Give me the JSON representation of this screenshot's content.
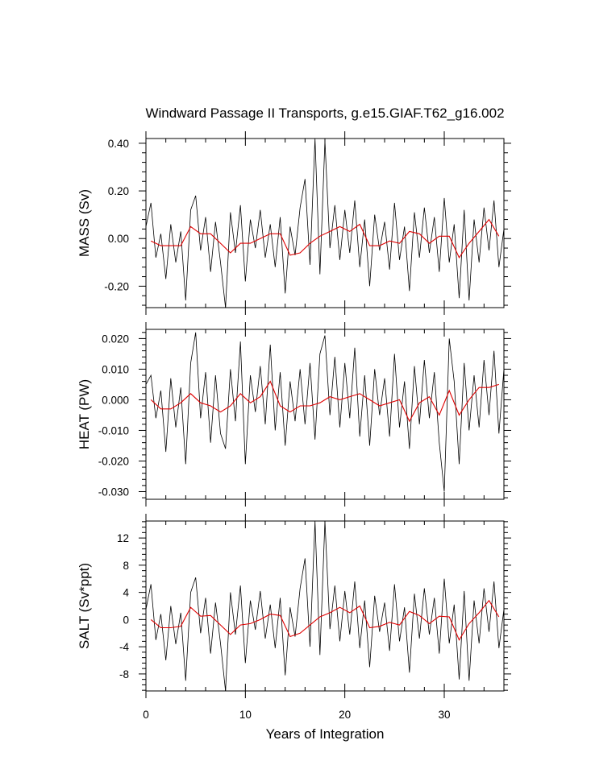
{
  "figure": {
    "title": "Windward Passage II Transports, g.e15.GIAF.T62_g16.002",
    "xlabel": "Years of Integration"
  },
  "colors": {
    "raw_line": "#000000",
    "smooth_line": "#e00000",
    "axes": "#000000"
  },
  "chart_data": [
    {
      "type": "line",
      "ylabel": "MASS (Sv)",
      "xlim": [
        0,
        36
      ],
      "ylim": [
        -0.29,
        0.42
      ],
      "yticks": [
        -0.2,
        0.0,
        0.2,
        0.4
      ],
      "ytick_labels": [
        "-0.20",
        "0.00",
        "0.20",
        "0.40"
      ],
      "xticks": [
        0,
        10,
        20,
        30
      ],
      "xtick_labels": [],
      "series": [
        {
          "role": "monthly",
          "x": [
            0,
            0.5,
            1.0,
            1.5,
            2.0,
            2.5,
            3.0,
            3.5,
            4.0,
            4.5,
            5.0,
            5.5,
            6.0,
            6.5,
            7.0,
            7.5,
            8.0,
            8.5,
            9.0,
            9.5,
            10.0,
            10.5,
            11.0,
            11.5,
            12.0,
            12.5,
            13.0,
            13.5,
            14.0,
            14.5,
            15.0,
            15.5,
            16.0,
            16.5,
            17.0,
            17.5,
            18.0,
            18.5,
            19.0,
            19.5,
            20.0,
            20.5,
            21.0,
            21.5,
            22.0,
            22.5,
            23.0,
            23.5,
            24.0,
            24.5,
            25.0,
            25.5,
            26.0,
            26.5,
            27.0,
            27.5,
            28.0,
            28.5,
            29.0,
            29.5,
            30.0,
            30.5,
            31.0,
            31.5,
            32.0,
            32.5,
            33.0,
            33.5,
            34.0,
            34.5,
            35.0,
            35.5,
            36.0
          ],
          "y": [
            0.05,
            0.15,
            -0.08,
            0.02,
            -0.17,
            0.06,
            -0.1,
            0.03,
            -0.26,
            0.12,
            0.18,
            -0.05,
            0.09,
            -0.14,
            0.07,
            -0.1,
            -0.29,
            0.11,
            -0.06,
            0.14,
            -0.18,
            0.08,
            -0.04,
            0.12,
            -0.08,
            0.06,
            -0.12,
            0.09,
            -0.23,
            0.05,
            -0.07,
            0.13,
            0.25,
            -0.11,
            0.42,
            -0.15,
            0.41,
            -0.04,
            0.14,
            -0.09,
            0.12,
            -0.06,
            0.16,
            -0.12,
            0.08,
            -0.2,
            0.1,
            -0.05,
            0.07,
            -0.13,
            0.15,
            -0.09,
            0.05,
            -0.22,
            0.11,
            -0.08,
            0.13,
            -0.06,
            0.09,
            -0.14,
            0.17,
            -0.1,
            0.06,
            -0.25,
            0.12,
            -0.26,
            0.08,
            -0.1,
            0.13,
            -0.05,
            0.16,
            -0.12,
            0.04
          ]
        },
        {
          "role": "annual",
          "x": [
            0.5,
            1.5,
            2.5,
            3.5,
            4.5,
            5.5,
            6.5,
            7.5,
            8.5,
            9.5,
            10.5,
            11.5,
            12.5,
            13.5,
            14.5,
            15.5,
            16.5,
            17.5,
            18.5,
            19.5,
            20.5,
            21.5,
            22.5,
            23.5,
            24.5,
            25.5,
            26.5,
            27.5,
            28.5,
            29.5,
            30.5,
            31.5,
            32.5,
            33.5,
            34.5,
            35.5
          ],
          "y": [
            -0.01,
            -0.03,
            -0.03,
            -0.03,
            0.05,
            0.02,
            0.02,
            -0.02,
            -0.06,
            -0.02,
            -0.02,
            0.0,
            0.02,
            0.02,
            -0.07,
            -0.06,
            -0.02,
            0.01,
            0.03,
            0.05,
            0.03,
            0.06,
            -0.03,
            -0.03,
            -0.01,
            -0.02,
            0.03,
            0.02,
            -0.02,
            0.01,
            0.01,
            -0.08,
            -0.02,
            0.03,
            0.08,
            0.01
          ]
        }
      ]
    },
    {
      "type": "line",
      "ylabel": "HEAT (PW)",
      "xlim": [
        0,
        36
      ],
      "ylim": [
        -0.0325,
        0.023
      ],
      "yticks": [
        -0.03,
        -0.02,
        -0.01,
        0.0,
        0.01,
        0.02
      ],
      "ytick_labels": [
        "-0.030",
        "-0.020",
        "-0.010",
        "0.000",
        "0.010",
        "0.020"
      ],
      "xticks": [
        0,
        10,
        20,
        30
      ],
      "xtick_labels": [],
      "series": [
        {
          "role": "monthly",
          "x": [
            0,
            0.5,
            1.0,
            1.5,
            2.0,
            2.5,
            3.0,
            3.5,
            4.0,
            4.5,
            5.0,
            5.5,
            6.0,
            6.5,
            7.0,
            7.5,
            8.0,
            8.5,
            9.0,
            9.5,
            10.0,
            10.5,
            11.0,
            11.5,
            12.0,
            12.5,
            13.0,
            13.5,
            14.0,
            14.5,
            15.0,
            15.5,
            16.0,
            16.5,
            17.0,
            17.5,
            18.0,
            18.5,
            19.0,
            19.5,
            20.0,
            20.5,
            21.0,
            21.5,
            22.0,
            22.5,
            23.0,
            23.5,
            24.0,
            24.5,
            25.0,
            25.5,
            26.0,
            26.5,
            27.0,
            27.5,
            28.0,
            28.5,
            29.0,
            29.5,
            30.0,
            30.5,
            31.0,
            31.5,
            32.0,
            32.5,
            33.0,
            33.5,
            34.0,
            34.5,
            35.0,
            35.5,
            36.0
          ],
          "y": [
            0.005,
            0.008,
            -0.006,
            0.003,
            -0.017,
            0.007,
            -0.009,
            0.004,
            -0.021,
            0.012,
            0.022,
            -0.006,
            0.009,
            -0.014,
            0.008,
            -0.011,
            -0.016,
            0.01,
            -0.007,
            0.019,
            -0.021,
            0.008,
            -0.004,
            0.011,
            -0.008,
            0.018,
            -0.01,
            0.009,
            -0.015,
            0.006,
            -0.007,
            0.01,
            -0.008,
            0.012,
            -0.013,
            0.015,
            0.021,
            -0.005,
            0.014,
            -0.009,
            0.012,
            -0.006,
            0.017,
            -0.012,
            0.008,
            -0.015,
            0.01,
            -0.005,
            0.007,
            -0.012,
            0.015,
            -0.009,
            0.006,
            -0.016,
            0.011,
            -0.008,
            0.013,
            -0.006,
            0.009,
            -0.014,
            -0.03,
            0.02,
            0.006,
            -0.021,
            0.012,
            -0.01,
            0.008,
            -0.009,
            0.013,
            -0.005,
            0.016,
            -0.011,
            0.01
          ]
        },
        {
          "role": "annual",
          "x": [
            0.5,
            1.5,
            2.5,
            3.5,
            4.5,
            5.5,
            6.5,
            7.5,
            8.5,
            9.5,
            10.5,
            11.5,
            12.5,
            13.5,
            14.5,
            15.5,
            16.5,
            17.5,
            18.5,
            19.5,
            20.5,
            21.5,
            22.5,
            23.5,
            24.5,
            25.5,
            26.5,
            27.5,
            28.5,
            29.5,
            30.5,
            31.5,
            32.5,
            33.5,
            34.5,
            35.5
          ],
          "y": [
            0.0,
            -0.003,
            -0.003,
            -0.001,
            0.002,
            -0.001,
            -0.002,
            -0.004,
            -0.002,
            0.002,
            -0.001,
            0.001,
            0.006,
            -0.002,
            -0.004,
            -0.002,
            -0.002,
            -0.001,
            0.001,
            0.0,
            0.001,
            0.002,
            0.0,
            -0.002,
            -0.001,
            0.0,
            -0.007,
            -0.001,
            0.001,
            -0.005,
            0.003,
            -0.005,
            0.0,
            0.004,
            0.004,
            0.005
          ]
        }
      ]
    },
    {
      "type": "line",
      "ylabel": "SALT (Sv*ppt)",
      "xlim": [
        0,
        36
      ],
      "ylim": [
        -10.5,
        14.5
      ],
      "yticks": [
        -8,
        -4,
        0,
        4,
        8,
        12
      ],
      "ytick_labels": [
        "-8",
        "-4",
        "0",
        "4",
        "8",
        "12"
      ],
      "xticks": [
        0,
        10,
        20,
        30
      ],
      "xtick_labels": [
        "0",
        "10",
        "20",
        "30"
      ],
      "series": [
        {
          "role": "monthly",
          "x": [
            0,
            0.5,
            1.0,
            1.5,
            2.0,
            2.5,
            3.0,
            3.5,
            4.0,
            4.5,
            5.0,
            5.5,
            6.0,
            6.5,
            7.0,
            7.5,
            8.0,
            8.5,
            9.0,
            9.5,
            10.0,
            10.5,
            11.0,
            11.5,
            12.0,
            12.5,
            13.0,
            13.5,
            14.0,
            14.5,
            15.0,
            15.5,
            16.0,
            16.5,
            17.0,
            17.5,
            18.0,
            18.5,
            19.0,
            19.5,
            20.0,
            20.5,
            21.0,
            21.5,
            22.0,
            22.5,
            23.0,
            23.5,
            24.0,
            24.5,
            25.0,
            25.5,
            26.0,
            26.5,
            27.0,
            27.5,
            28.0,
            28.5,
            29.0,
            29.5,
            30.0,
            30.5,
            31.0,
            31.5,
            32.0,
            32.5,
            33.0,
            33.5,
            34.0,
            34.5,
            35.0,
            35.5,
            36.0
          ],
          "y": [
            1.5,
            5.2,
            -3.0,
            0.8,
            -6.0,
            2.0,
            -3.6,
            1.0,
            -9.0,
            4.0,
            6.2,
            -2.0,
            3.2,
            -5.0,
            2.5,
            -3.5,
            -10.5,
            4.0,
            -2.2,
            5.0,
            -6.4,
            2.8,
            -1.5,
            4.2,
            -2.8,
            2.2,
            -4.2,
            3.2,
            -8.2,
            1.8,
            -2.5,
            4.6,
            9.0,
            -4.0,
            14.5,
            -5.2,
            14.5,
            -1.4,
            5.0,
            -3.2,
            4.2,
            -2.2,
            5.6,
            -4.2,
            2.8,
            -7.0,
            3.5,
            -1.8,
            2.5,
            -4.6,
            5.2,
            -3.2,
            1.8,
            -7.8,
            3.8,
            -2.8,
            4.6,
            -2.2,
            3.2,
            -5.0,
            6.0,
            -3.5,
            2.2,
            -8.8,
            4.2,
            -9.0,
            2.8,
            -3.5,
            4.6,
            -1.8,
            5.6,
            -4.2,
            1.5
          ]
        },
        {
          "role": "annual",
          "x": [
            0.5,
            1.5,
            2.5,
            3.5,
            4.5,
            5.5,
            6.5,
            7.5,
            8.5,
            9.5,
            10.5,
            11.5,
            12.5,
            13.5,
            14.5,
            15.5,
            16.5,
            17.5,
            18.5,
            19.5,
            20.5,
            21.5,
            22.5,
            23.5,
            24.5,
            25.5,
            26.5,
            27.5,
            28.5,
            29.5,
            30.5,
            31.5,
            32.5,
            33.5,
            34.5,
            35.5
          ],
          "y": [
            0.0,
            -1.2,
            -1.2,
            -1.0,
            1.8,
            0.5,
            0.6,
            -0.8,
            -2.2,
            -0.8,
            -0.6,
            0.0,
            0.8,
            0.6,
            -2.5,
            -2.0,
            -0.8,
            0.4,
            1.0,
            1.8,
            1.0,
            2.0,
            -1.2,
            -1.0,
            -0.4,
            -0.8,
            1.2,
            0.6,
            -0.6,
            0.5,
            0.4,
            -3.0,
            -0.6,
            1.0,
            2.8,
            0.4
          ]
        }
      ]
    }
  ]
}
